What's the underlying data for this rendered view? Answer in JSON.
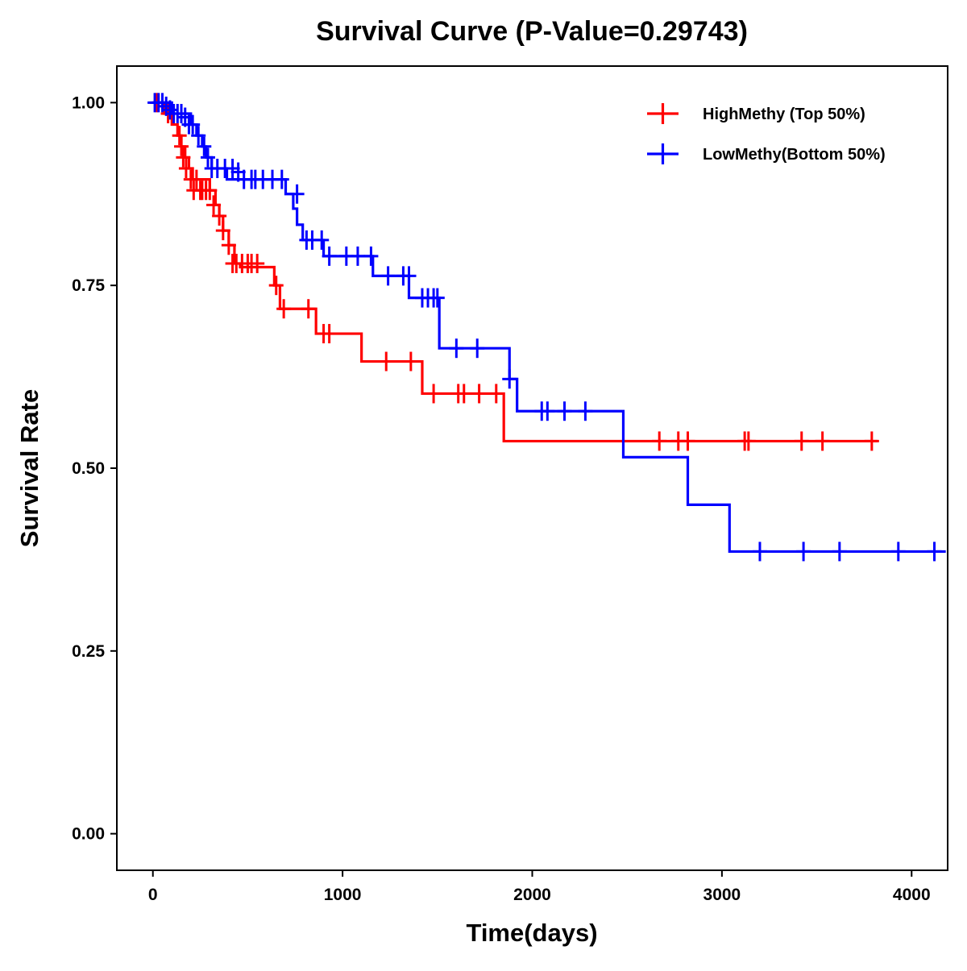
{
  "chart_data": {
    "type": "line",
    "title": "Survival Curve (P-Value=0.29743)",
    "xlabel": "Time(days)",
    "ylabel": "Survival Rate",
    "xlim": [
      -190,
      4190
    ],
    "ylim": [
      -0.05,
      1.05
    ],
    "xticks": [
      0,
      1000,
      2000,
      3000,
      4000
    ],
    "xtick_labels": [
      "0",
      "1000",
      "2000",
      "3000",
      "4000"
    ],
    "yticks": [
      0.0,
      0.25,
      0.5,
      0.75,
      1.0
    ],
    "ytick_labels": [
      "0.00",
      "0.25",
      "0.50",
      "0.75",
      "1.00"
    ],
    "legend_position": "top-right",
    "series": [
      {
        "name": "HighMethy (Top 50%)",
        "color": "#ff0000",
        "step_times": [
          0,
          60,
          100,
          130,
          150,
          170,
          190,
          210,
          300,
          330,
          350,
          370,
          400,
          430,
          460,
          640,
          670,
          860,
          1100,
          1420,
          1850,
          3820
        ],
        "step_values": [
          1.0,
          0.985,
          0.97,
          0.955,
          0.94,
          0.925,
          0.91,
          0.895,
          0.88,
          0.86,
          0.845,
          0.825,
          0.805,
          0.78,
          0.775,
          0.75,
          0.718,
          0.684,
          0.646,
          0.602,
          0.537,
          0.537
        ],
        "censor_times": [
          20,
          80,
          140,
          150,
          160,
          175,
          200,
          215,
          230,
          250,
          260,
          280,
          300,
          320,
          350,
          370,
          400,
          420,
          440,
          470,
          500,
          520,
          550,
          650,
          690,
          820,
          900,
          930,
          1230,
          1360,
          1480,
          1610,
          1640,
          1720,
          1810,
          2670,
          2770,
          2820,
          3120,
          3140,
          3420,
          3530,
          3790
        ],
        "censor_values": [
          1.0,
          0.985,
          0.955,
          0.94,
          0.925,
          0.91,
          0.895,
          0.88,
          0.895,
          0.88,
          0.88,
          0.88,
          0.88,
          0.86,
          0.845,
          0.825,
          0.805,
          0.78,
          0.78,
          0.78,
          0.78,
          0.78,
          0.78,
          0.75,
          0.718,
          0.718,
          0.684,
          0.684,
          0.646,
          0.646,
          0.602,
          0.602,
          0.602,
          0.602,
          0.602,
          0.537,
          0.537,
          0.537,
          0.537,
          0.537,
          0.537,
          0.537,
          0.537
        ]
      },
      {
        "name": "LowMethy(Bottom 50%)",
        "color": "#0000ff",
        "step_times": [
          0,
          100,
          200,
          230,
          260,
          280,
          310,
          330,
          390,
          700,
          740,
          760,
          790,
          900,
          1160,
          1350,
          1510,
          1880,
          1920,
          2480,
          2820,
          3040,
          4180
        ],
        "step_values": [
          1.0,
          0.985,
          0.97,
          0.955,
          0.94,
          0.925,
          0.91,
          0.91,
          0.895,
          0.875,
          0.855,
          0.833,
          0.812,
          0.79,
          0.763,
          0.733,
          0.664,
          0.622,
          0.578,
          0.515,
          0.45,
          0.386,
          0.386
        ],
        "censor_times": [
          10,
          30,
          50,
          70,
          90,
          110,
          130,
          150,
          170,
          190,
          210,
          240,
          270,
          290,
          310,
          340,
          380,
          420,
          450,
          480,
          520,
          540,
          580,
          630,
          680,
          760,
          810,
          840,
          890,
          930,
          1020,
          1080,
          1150,
          1240,
          1320,
          1350,
          1420,
          1450,
          1480,
          1500,
          1600,
          1710,
          1880,
          2050,
          2080,
          2170,
          2280,
          3200,
          3430,
          3620,
          3930,
          4120
        ],
        "censor_values": [
          1.0,
          1.0,
          1.0,
          0.995,
          0.99,
          0.985,
          0.985,
          0.985,
          0.98,
          0.97,
          0.97,
          0.955,
          0.94,
          0.925,
          0.91,
          0.91,
          0.91,
          0.91,
          0.905,
          0.895,
          0.895,
          0.895,
          0.895,
          0.895,
          0.895,
          0.875,
          0.812,
          0.812,
          0.812,
          0.79,
          0.79,
          0.79,
          0.79,
          0.763,
          0.763,
          0.763,
          0.733,
          0.733,
          0.733,
          0.733,
          0.664,
          0.664,
          0.622,
          0.578,
          0.578,
          0.578,
          0.578,
          0.386,
          0.386,
          0.386,
          0.386,
          0.386
        ]
      }
    ]
  }
}
